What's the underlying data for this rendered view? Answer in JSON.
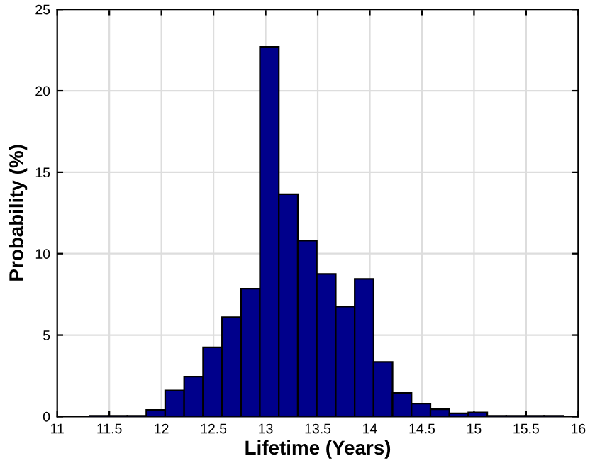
{
  "chart_data": {
    "type": "histogram",
    "xlabel": "Lifetime (Years)",
    "ylabel": "Probability (%)",
    "bins": [
      11.309,
      11.491,
      11.673,
      11.855,
      12.036,
      12.218,
      12.4,
      12.582,
      12.764,
      12.945,
      13.127,
      13.309,
      13.491,
      13.673,
      13.855,
      14.036,
      14.218,
      14.4,
      14.582,
      14.764,
      14.945,
      15.127,
      15.309,
      15.491,
      15.673,
      15.855
    ],
    "values": [
      0.05,
      0.05,
      0.05,
      0.4,
      1.6,
      2.45,
      4.25,
      6.1,
      7.85,
      22.7,
      13.65,
      10.8,
      8.75,
      6.75,
      8.45,
      3.35,
      1.45,
      0.8,
      0.45,
      0.2,
      0.25,
      0.05,
      0.05,
      0.05,
      0.05
    ],
    "color": "#00008b",
    "xlim": [
      11,
      16
    ],
    "ylim": [
      0,
      25
    ],
    "xticks": [
      11,
      11.5,
      12,
      12.5,
      13,
      13.5,
      14,
      14.5,
      15,
      15.5,
      16
    ],
    "yticks": [
      0,
      5,
      10,
      15,
      20,
      25
    ],
    "grid": true
  }
}
